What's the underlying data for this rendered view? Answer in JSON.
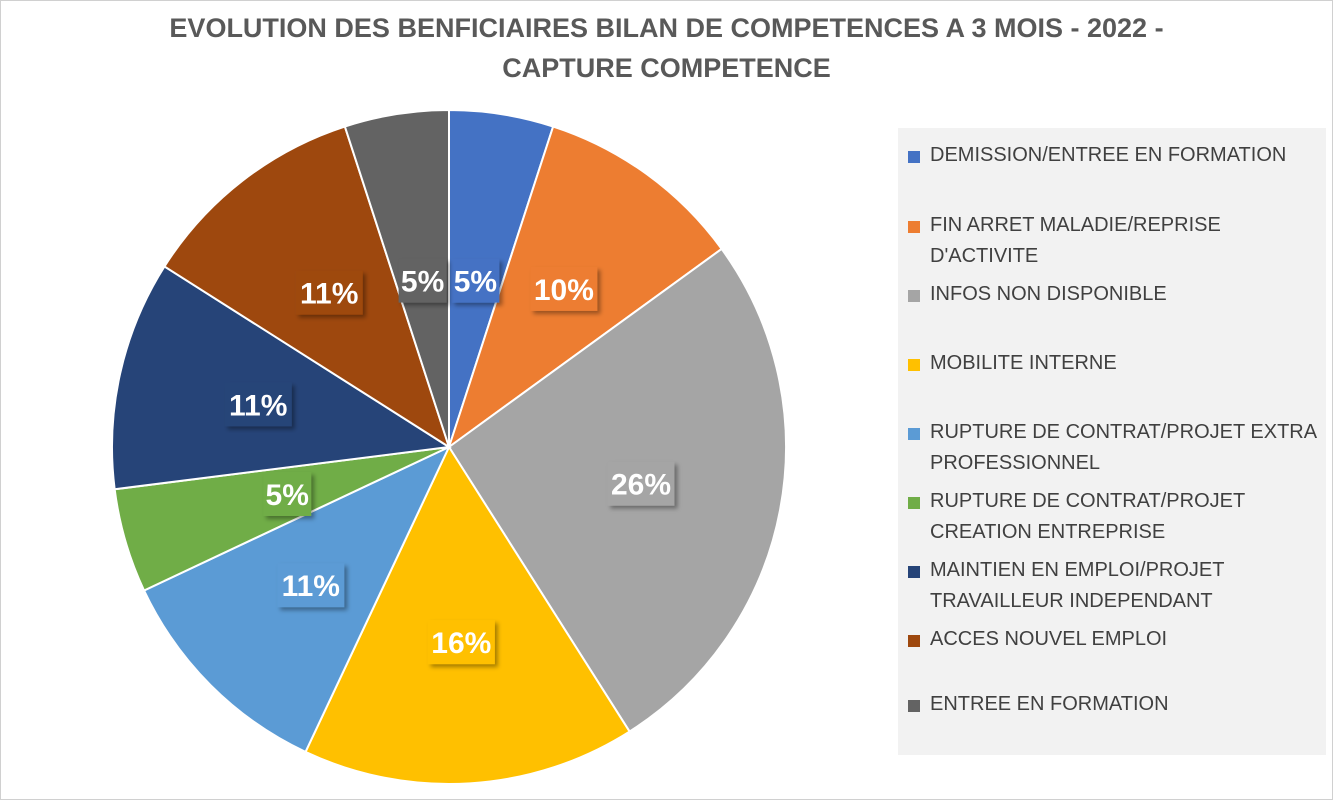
{
  "chart_data": {
    "type": "pie",
    "title_lines": [
      "EVOLUTION DES BENFICIAIRES BILAN DE COMPETENCES A 3 MOIS - 2022 -",
      "CAPTURE COMPETENCE"
    ],
    "legend_position": "right",
    "slices": [
      {
        "label": "DEMISSION/ENTREE EN FORMATION",
        "value": 5,
        "display": "5%",
        "color": "#4472C4"
      },
      {
        "label": "FIN ARRET MALADIE/REPRISE D'ACTIVITE",
        "value": 10,
        "display": "10%",
        "color": "#ED7D31"
      },
      {
        "label": "INFOS NON DISPONIBLE",
        "value": 26,
        "display": "26%",
        "color": "#A5A5A5"
      },
      {
        "label": "MOBILITE INTERNE",
        "value": 16,
        "display": "16%",
        "color": "#FFC000"
      },
      {
        "label": "RUPTURE DE CONTRAT/PROJET EXTRA PROFESSIONNEL",
        "value": 11,
        "display": "11%",
        "color": "#5B9BD5"
      },
      {
        "label": "RUPTURE DE CONTRAT/PROJET CREATION ENTREPRISE",
        "value": 5,
        "display": "5%",
        "color": "#70AD47"
      },
      {
        "label": "MAINTIEN EN EMPLOI/PROJET TRAVAILLEUR INDEPENDANT",
        "value": 11,
        "display": "11%",
        "color": "#264478"
      },
      {
        "label": "ACCES NOUVEL EMPLOI",
        "value": 11,
        "display": "11%",
        "color": "#9E480E"
      },
      {
        "label": "ENTREE EN FORMATION",
        "value": 5,
        "display": "5%",
        "color": "#636363"
      }
    ]
  }
}
